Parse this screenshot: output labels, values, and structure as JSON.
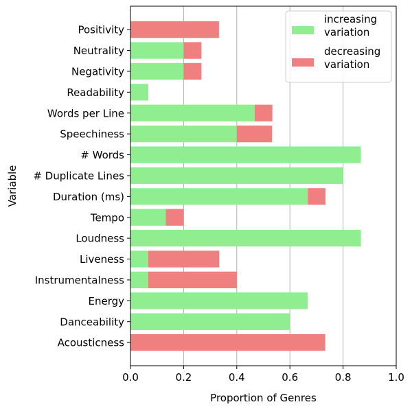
{
  "chart_data": {
    "type": "bar",
    "orientation": "horizontal",
    "stacked": true,
    "xlabel": "Proportion of Genres",
    "ylabel": "Variable",
    "xlim": [
      0,
      1
    ],
    "xticks": [
      "0.0",
      "0.2",
      "0.4",
      "0.6",
      "0.8",
      "1.0"
    ],
    "grid": "vertical",
    "legend_position": "top-right",
    "categories": [
      "Acousticness",
      "Danceability",
      "Energy",
      "Instrumentalness",
      "Liveness",
      "Loudness",
      "Tempo",
      "Duration (ms)",
      "# Duplicate Lines",
      "# Words",
      "Speechiness",
      "Words per Line",
      "Readability",
      "Negativity",
      "Neutrality",
      "Positivity"
    ],
    "series": [
      {
        "name": "increasing\nvariation",
        "color": "#90EE90",
        "values": [
          0.0,
          0.6,
          0.667,
          0.067,
          0.067,
          0.867,
          0.133,
          0.667,
          0.8,
          0.867,
          0.4,
          0.467,
          0.067,
          0.2,
          0.2,
          0.0
        ]
      },
      {
        "name": "decreasing\nvariation",
        "color": "#F08080",
        "values": [
          0.733,
          0.0,
          0.0,
          0.333,
          0.267,
          0.0,
          0.067,
          0.067,
          0.0,
          0.0,
          0.133,
          0.067,
          0.0,
          0.067,
          0.067,
          0.333
        ]
      }
    ]
  }
}
